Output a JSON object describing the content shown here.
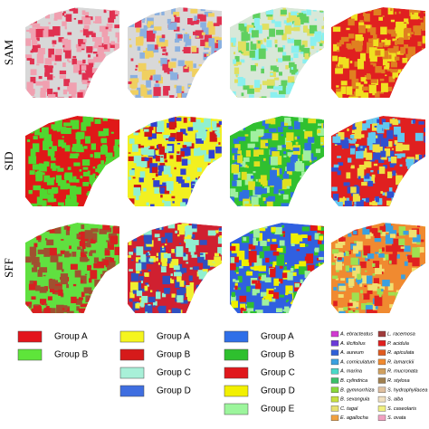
{
  "rows": [
    "SAM",
    "SID",
    "SFF"
  ],
  "legends": [
    {
      "items": [
        {
          "label": "Group A",
          "color": "#e3141c"
        },
        {
          "label": "Group B",
          "color": "#5ee53a"
        }
      ]
    },
    {
      "items": [
        {
          "label": "Group A",
          "color": "#f5f51e"
        },
        {
          "label": "Group B",
          "color": "#d61a1a"
        },
        {
          "label": "Group C",
          "color": "#a8f0d8"
        },
        {
          "label": "Group D",
          "color": "#3f6ee0"
        }
      ]
    },
    {
      "items": [
        {
          "label": "Group A",
          "color": "#2f6fe8"
        },
        {
          "label": "Group B",
          "color": "#2ec02e"
        },
        {
          "label": "Group C",
          "color": "#e0181c"
        },
        {
          "label": "Group D",
          "color": "#f2f000"
        },
        {
          "label": "Group E",
          "color": "#9cf59c"
        }
      ]
    },
    {
      "items": [
        {
          "label": "A. ebracteatus",
          "color": "#d23ad2"
        },
        {
          "label": "A. ilicifolius",
          "color": "#6a3ad8"
        },
        {
          "label": "A. aureum",
          "color": "#2f5fd8"
        },
        {
          "label": "A. corniculatum",
          "color": "#3aa0e0"
        },
        {
          "label": "A. marina",
          "color": "#4ad8c8"
        },
        {
          "label": "B. cylindrica",
          "color": "#3ac06a"
        },
        {
          "label": "B. gymnorrhiza",
          "color": "#8ad83a"
        },
        {
          "label": "B. sexangula",
          "color": "#c8e040"
        },
        {
          "label": "C. tagal",
          "color": "#e8e070"
        },
        {
          "label": "E. agallocha",
          "color": "#f0a040"
        },
        {
          "label": "L. racemosa",
          "color": "#a03a3a"
        },
        {
          "label": "P. acidula",
          "color": "#e02020"
        },
        {
          "label": "R. apiculata",
          "color": "#e05a20"
        },
        {
          "label": "R. lamarckii",
          "color": "#f08a30"
        },
        {
          "label": "R. mucronata",
          "color": "#d0a060"
        },
        {
          "label": "R. stylosa",
          "color": "#a08050"
        },
        {
          "label": "S. hydrophyllacea",
          "color": "#e0c0a0"
        },
        {
          "label": "S. alba",
          "color": "#f0e0c0"
        },
        {
          "label": "S. caseolaris",
          "color": "#f0f080"
        },
        {
          "label": "S. ovata",
          "color": "#f0a0c0"
        }
      ]
    }
  ]
}
